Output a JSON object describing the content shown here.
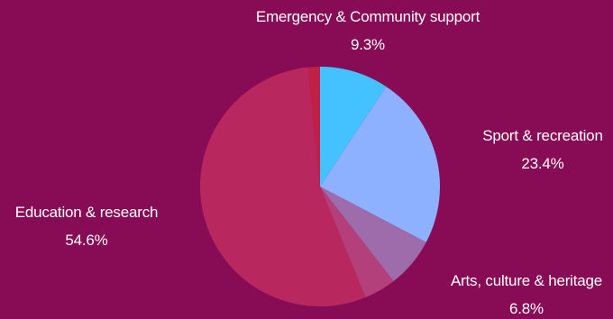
{
  "chart_data": {
    "type": "pie",
    "title": "",
    "slices": [
      {
        "label": "Emergency & Community support",
        "value": 9.3,
        "value_label": "9.3%",
        "color": "#44c2ff"
      },
      {
        "label": "Sport & recreation",
        "value": 23.4,
        "value_label": "23.4%",
        "color": "#8db0ff"
      },
      {
        "label": "Arts, culture & heritage",
        "value": 6.8,
        "value_label": "6.8%",
        "color": "#9e6bab"
      },
      {
        "label": "",
        "value": 4.3,
        "value_label": "",
        "color": "#b3407a"
      },
      {
        "label": "Education & research",
        "value": 54.6,
        "value_label": "54.6%",
        "color": "#b8285e"
      },
      {
        "label": "",
        "value": 1.6,
        "value_label": "",
        "color": "#c21f46"
      }
    ],
    "start_angle_deg": 0,
    "direction": "clockwise"
  }
}
